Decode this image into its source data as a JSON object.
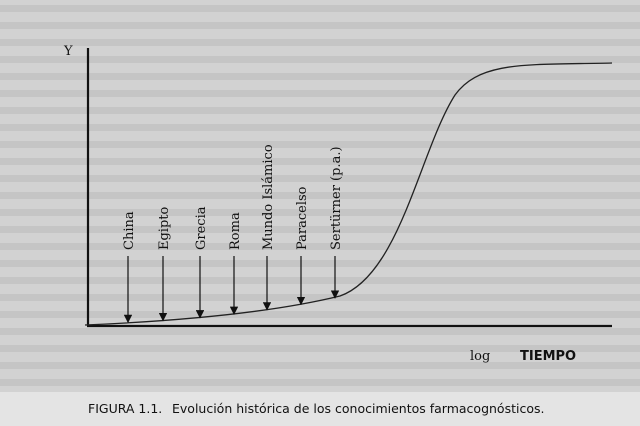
{
  "axis": {
    "y_label": "Y",
    "x_label_prefix": "log",
    "x_label": "TIEMPO"
  },
  "events": [
    "China",
    "Egipto",
    "Grecia",
    "Roma",
    "Mundo Islámico",
    "Paracelso",
    "Sertürner (p.a.)"
  ],
  "caption": {
    "label": "FIGURA 1.1.",
    "text": "Evolución histórica de los conocimientos farmacognósticos."
  }
}
